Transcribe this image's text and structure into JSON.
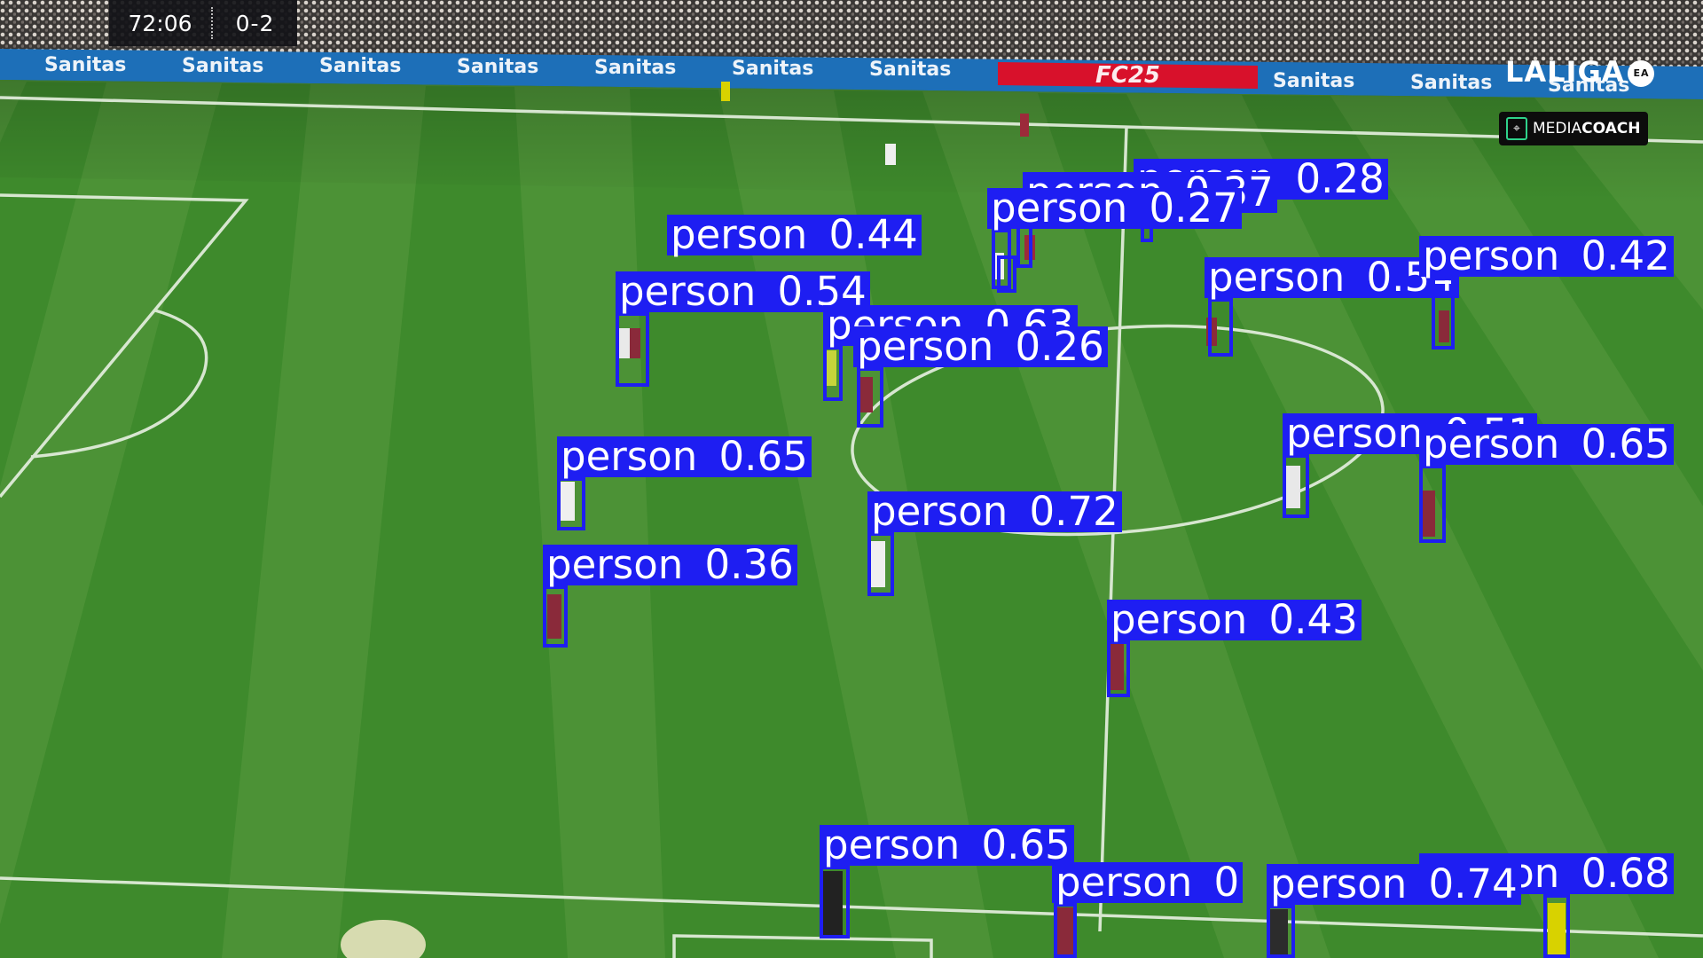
{
  "scoreboard": {
    "clock": "72:06",
    "score": "0-2"
  },
  "sponsor_boards": [
    "Sanitas",
    "Sanitas",
    "Sanitas",
    "Sanitas",
    "Sanitas",
    "Sanitas",
    "Sanitas",
    "FC25",
    "Sanitas",
    "Sanitas",
    "Sanitas"
  ],
  "broadcast": {
    "league_logo": "LALIGA",
    "league_badge": "EA",
    "watermark_prefix": "MEDIA",
    "watermark_suffix": "COACH"
  },
  "detections": [
    {
      "label": "person",
      "score": "0.28"
    },
    {
      "label": "person",
      "score": "0.37"
    },
    {
      "label": "person",
      "score": "0.27"
    },
    {
      "label": "person",
      "score": "0.44"
    },
    {
      "label": "person",
      "score": "0.54"
    },
    {
      "label": "person",
      "score": "0.54"
    },
    {
      "label": "person",
      "score": "0.42"
    },
    {
      "label": "person",
      "score": "0.63"
    },
    {
      "label": "person",
      "score": "0.26"
    },
    {
      "label": "person",
      "score": "0.65"
    },
    {
      "label": "person",
      "score": "0.51"
    },
    {
      "label": "person",
      "score": "0.65"
    },
    {
      "label": "person",
      "score": "0.72"
    },
    {
      "label": "person",
      "score": "0.36"
    },
    {
      "label": "person",
      "score": "0.43"
    },
    {
      "label": "person",
      "score": "0.65"
    },
    {
      "label": "person",
      "score": "0.68"
    },
    {
      "label": "person",
      "score": "0"
    },
    {
      "label": "person",
      "score": "0.74"
    }
  ],
  "colors": {
    "detection_box": "#1e1ef2",
    "pitch_light": "#4c9236",
    "pitch_dark": "#3e8a2c",
    "board_blue": "#1d6fb8",
    "board_red": "#d8112b"
  }
}
